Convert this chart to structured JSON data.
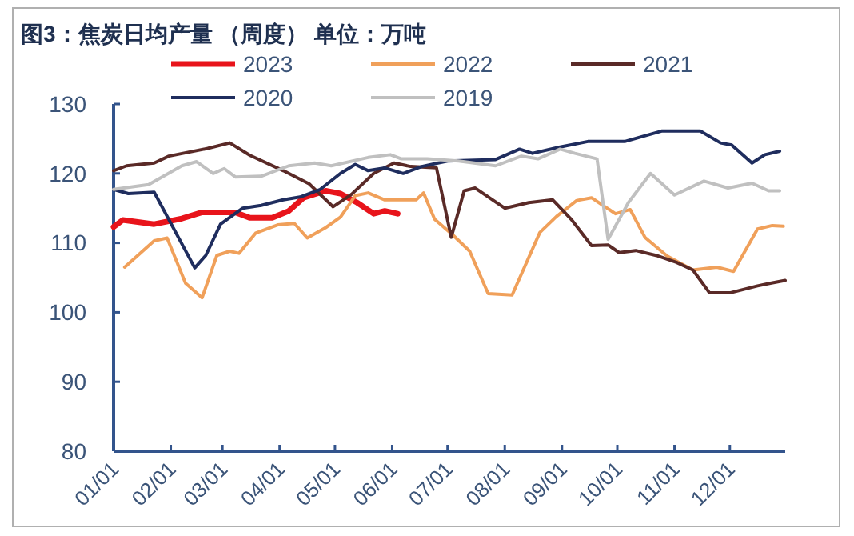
{
  "chart_data": {
    "type": "line",
    "title": "图3：焦炭日均产量 （周度）   单位：万吨",
    "legend": "top",
    "grid": false,
    "marker": "none",
    "line_style": "solid",
    "xlim": [
      "--01-01",
      "--12-31"
    ],
    "xticks": [
      {
        "value": "--01-01",
        "label": "01/01"
      },
      {
        "value": "--02-01",
        "label": "02/01"
      },
      {
        "value": "--03-01",
        "label": "03/01"
      },
      {
        "value": "--04-01",
        "label": "04/01"
      },
      {
        "value": "--05-01",
        "label": "05/01"
      },
      {
        "value": "--06-01",
        "label": "06/01"
      },
      {
        "value": "--07-01",
        "label": "07/01"
      },
      {
        "value": "--08-01",
        "label": "08/01"
      },
      {
        "value": "--09-01",
        "label": "09/01"
      },
      {
        "value": "--10-01",
        "label": "10/01"
      },
      {
        "value": "--11-01",
        "label": "11/01"
      },
      {
        "value": "--12-01",
        "label": "12/01"
      }
    ],
    "ylim": [
      80,
      130
    ],
    "yticks": [
      80,
      90,
      100,
      110,
      120,
      130
    ],
    "series": [
      {
        "name": "2023",
        "color": "#e8141b",
        "x": [
          "--01-01",
          "--01-06",
          "--01-23",
          "--02-07",
          "--02-18",
          "--03-08",
          "--03-16",
          "--03-28",
          "--04-06",
          "--04-14",
          "--04-26",
          "--05-04",
          "--05-13",
          "--05-22",
          "--05-28",
          "--06-04"
        ],
        "values": [
          112.3,
          113.3,
          112.7,
          113.5,
          114.4,
          114.4,
          113.6,
          113.6,
          114.6,
          116.5,
          117.5,
          117.1,
          115.8,
          114.2,
          114.6,
          114.2
        ]
      },
      {
        "name": "2022",
        "color": "#f0a05a",
        "x": [
          "--01-07",
          "--01-23",
          "--01-30",
          "--02-09",
          "--02-18",
          "--02-26",
          "--03-05",
          "--03-10",
          "--03-19",
          "--03-31",
          "--04-09",
          "--04-16",
          "--04-26",
          "--05-04",
          "--05-12",
          "--05-19",
          "--05-28",
          "--06-14",
          "--06-18",
          "--06-24",
          "--07-04",
          "--07-13",
          "--07-23",
          "--08-05",
          "--08-20",
          "--08-29",
          "--09-09",
          "--09-17",
          "--09-30",
          "--10-08",
          "--10-16",
          "--10-28",
          "--11-11",
          "--11-24",
          "--12-03",
          "--12-16",
          "--12-24",
          "--12-30"
        ],
        "values": [
          106.5,
          110.3,
          110.7,
          104.2,
          102.1,
          108.2,
          108.8,
          108.5,
          111.4,
          112.6,
          112.8,
          110.7,
          112.2,
          113.7,
          116.8,
          117.2,
          116.2,
          116.2,
          117.2,
          113.4,
          111.1,
          108.8,
          102.7,
          102.5,
          111.5,
          113.8,
          116.1,
          116.5,
          114.2,
          114.8,
          110.8,
          108.1,
          106.1,
          106.5,
          105.9,
          112,
          112.5,
          112.4
        ]
      },
      {
        "name": "2021",
        "color": "#5a2a27",
        "x": [
          "--01-01",
          "--01-08",
          "--01-23",
          "--01-31",
          "--02-21",
          "--03-05",
          "--03-16",
          "--04-03",
          "--04-17",
          "--04-30",
          "--05-10",
          "--05-22",
          "--06-02",
          "--06-11",
          "--06-25",
          "--07-03",
          "--07-10",
          "--07-16",
          "--08-01",
          "--08-14",
          "--08-27",
          "--09-06",
          "--09-17",
          "--09-26",
          "--10-02",
          "--10-11",
          "--10-22",
          "--11-02",
          "--11-11",
          "--11-20",
          "--12-01",
          "--12-16",
          "--12-23",
          "--12-31"
        ],
        "values": [
          120.4,
          121.1,
          121.5,
          122.5,
          123.6,
          124.4,
          122.6,
          120.4,
          118.5,
          115.2,
          117,
          120,
          121.5,
          121,
          120.8,
          110.8,
          117.5,
          117.9,
          115,
          115.8,
          116.2,
          113.4,
          109.6,
          109.7,
          108.6,
          108.9,
          108.2,
          107.2,
          106.1,
          102.8,
          102.8,
          103.8,
          104.2,
          104.6
        ]
      },
      {
        "name": "2020",
        "color": "#1f2d5e",
        "x": [
          "--01-01",
          "--01-09",
          "--01-23",
          "--02-14",
          "--02-20",
          "--02-28",
          "--03-12",
          "--03-22",
          "--04-03",
          "--04-12",
          "--04-23",
          "--05-04",
          "--05-12",
          "--05-19",
          "--05-28",
          "--06-07",
          "--06-17",
          "--07-01",
          "--07-27",
          "--08-09",
          "--08-16",
          "--08-31",
          "--09-15",
          "--10-05",
          "--10-25",
          "--11-15",
          "--11-26",
          "--12-02",
          "--12-13",
          "--12-20",
          "--12-28"
        ],
        "values": [
          117.7,
          117.1,
          117.3,
          106.4,
          108.2,
          112.7,
          115,
          115.4,
          116.2,
          116.6,
          117.7,
          120,
          121.3,
          120.4,
          120.8,
          120,
          121,
          121.8,
          122,
          123.5,
          122.9,
          123.8,
          124.6,
          124.6,
          126.1,
          126.1,
          124.4,
          124.1,
          121.5,
          122.7,
          123.2
        ]
      },
      {
        "name": "2019",
        "color": "#c0c0c0",
        "x": [
          "--01-01",
          "--01-20",
          "--02-07",
          "--02-15",
          "--02-24",
          "--03-02",
          "--03-08",
          "--03-22",
          "--04-06",
          "--04-20",
          "--04-29",
          "--05-19",
          "--05-31",
          "--06-06",
          "--06-20",
          "--07-07",
          "--07-27",
          "--08-10",
          "--08-19",
          "--08-31",
          "--09-08",
          "--09-20",
          "--09-26",
          "--10-07",
          "--10-19",
          "--11-01",
          "--11-17",
          "--11-30",
          "--12-13",
          "--12-22",
          "--12-28"
        ],
        "values": [
          117.7,
          118.4,
          121.1,
          121.7,
          120,
          120.7,
          119.5,
          119.6,
          121.1,
          121.5,
          121.1,
          122.3,
          122.7,
          122.1,
          122.1,
          121.8,
          121.1,
          122.5,
          122.1,
          123.5,
          122.9,
          122.1,
          110.5,
          115.8,
          120,
          116.9,
          118.9,
          117.9,
          118.6,
          117.5,
          117.5
        ]
      }
    ]
  }
}
